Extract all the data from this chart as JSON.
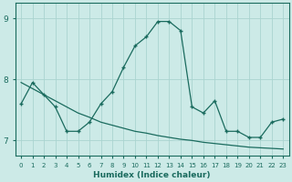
{
  "xlabel": "Humidex (Indice chaleur)",
  "bg_color": "#cceae7",
  "line_color": "#1a6b5e",
  "grid_color": "#aad4d0",
  "xlim": [
    -0.5,
    23.5
  ],
  "ylim": [
    6.75,
    9.25
  ],
  "yticks": [
    7,
    8,
    9
  ],
  "xticks": [
    0,
    1,
    2,
    3,
    4,
    5,
    6,
    7,
    8,
    9,
    10,
    11,
    12,
    13,
    14,
    15,
    16,
    17,
    18,
    19,
    20,
    21,
    22,
    23
  ],
  "curve1_x": [
    0,
    1,
    2,
    3,
    4,
    5,
    6,
    7,
    8,
    9,
    10,
    11,
    12,
    13,
    14,
    15,
    16,
    17,
    18,
    19,
    20,
    21,
    22,
    23
  ],
  "curve1_y": [
    7.6,
    7.95,
    7.75,
    7.55,
    7.15,
    7.15,
    7.3,
    7.6,
    7.8,
    8.2,
    8.55,
    8.7,
    8.95,
    8.95,
    8.8,
    7.55,
    7.45,
    7.65,
    7.15,
    7.15,
    7.05,
    7.05,
    7.3,
    7.35
  ],
  "curve2_x": [
    0,
    1,
    2,
    3,
    4,
    5,
    6,
    7,
    8,
    9,
    10,
    11,
    12,
    13,
    14,
    15,
    16,
    17,
    18,
    19,
    20,
    21,
    22,
    23
  ],
  "curve2_y": [
    7.95,
    7.85,
    7.75,
    7.65,
    7.55,
    7.45,
    7.38,
    7.3,
    7.25,
    7.2,
    7.15,
    7.12,
    7.08,
    7.05,
    7.02,
    7.0,
    6.97,
    6.95,
    6.93,
    6.91,
    6.89,
    6.88,
    6.87,
    6.86
  ]
}
